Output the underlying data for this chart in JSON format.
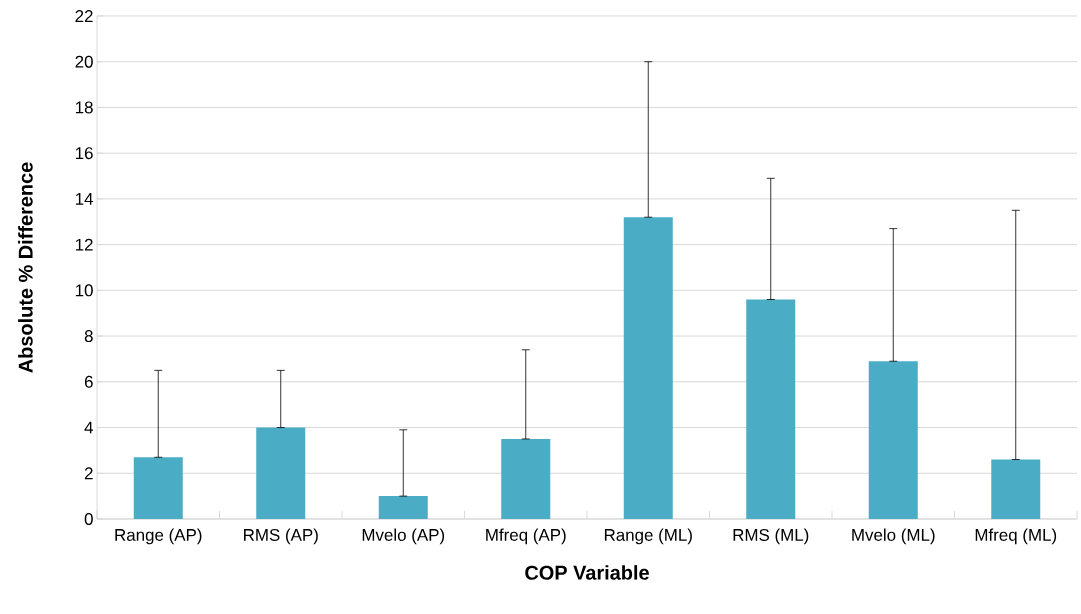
{
  "chart_data": {
    "type": "bar",
    "xlabel": "COP Variable",
    "ylabel": "Absolute % Difference",
    "categories": [
      "Range (AP)",
      "RMS (AP)",
      "Mvelo (AP)",
      "Mfreq (AP)",
      "Range (ML)",
      "RMS (ML)",
      "Mvelo (ML)",
      "Mfreq (ML)"
    ],
    "values": [
      2.7,
      4.0,
      1.0,
      3.5,
      13.2,
      9.6,
      6.9,
      2.6
    ],
    "errors": [
      [
        2.7,
        6.5
      ],
      [
        4.0,
        6.5
      ],
      [
        1.0,
        3.9
      ],
      [
        3.5,
        7.4
      ],
      [
        13.2,
        20.0
      ],
      [
        9.6,
        14.9
      ],
      [
        6.9,
        12.7
      ],
      [
        2.6,
        13.5
      ]
    ],
    "color": "#4bacc6",
    "ylim": [
      0,
      22
    ],
    "yticks": [
      0,
      2,
      4,
      6,
      8,
      10,
      12,
      14,
      16,
      18,
      20,
      22
    ],
    "grid": "y"
  }
}
